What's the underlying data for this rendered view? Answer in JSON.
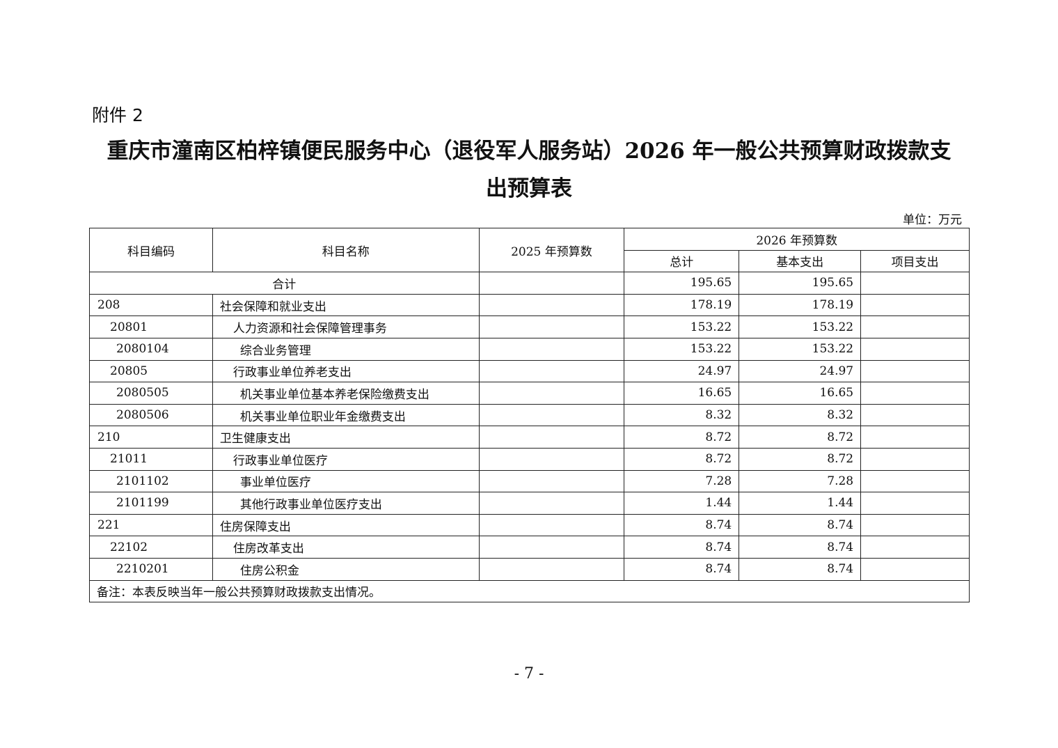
{
  "attachment": "附件 2",
  "title_line1": "重庆市潼南区柏梓镇便民服务中心（退役军人服务站）2026 年一般公共预算财政拨款支",
  "title_line2": "出预算表",
  "unit": "单位：万元",
  "headers": {
    "code": "科目编码",
    "name": "科目名称",
    "prev": "2025 年预算数",
    "cur": "2026 年预算数",
    "total": "总计",
    "basic": "基本支出",
    "project": "项目支出"
  },
  "total_row": {
    "label": "合计",
    "prev": "",
    "total": "195.65",
    "basic": "195.65",
    "project": ""
  },
  "rows": [
    {
      "level": 1,
      "code": "208",
      "name": "社会保障和就业支出",
      "prev": "",
      "total": "178.19",
      "basic": "178.19",
      "project": ""
    },
    {
      "level": 2,
      "code": "20801",
      "name": "人力资源和社会保障管理事务",
      "prev": "",
      "total": "153.22",
      "basic": "153.22",
      "project": ""
    },
    {
      "level": 3,
      "code": "2080104",
      "name": "综合业务管理",
      "prev": "",
      "total": "153.22",
      "basic": "153.22",
      "project": ""
    },
    {
      "level": 2,
      "code": "20805",
      "name": "行政事业单位养老支出",
      "prev": "",
      "total": "24.97",
      "basic": "24.97",
      "project": ""
    },
    {
      "level": 3,
      "code": "2080505",
      "name": "机关事业单位基本养老保险缴费支出",
      "prev": "",
      "total": "16.65",
      "basic": "16.65",
      "project": ""
    },
    {
      "level": 3,
      "code": "2080506",
      "name": "机关事业单位职业年金缴费支出",
      "prev": "",
      "total": "8.32",
      "basic": "8.32",
      "project": ""
    },
    {
      "level": 1,
      "code": "210",
      "name": "卫生健康支出",
      "prev": "",
      "total": "8.72",
      "basic": "8.72",
      "project": ""
    },
    {
      "level": 2,
      "code": "21011",
      "name": "行政事业单位医疗",
      "prev": "",
      "total": "8.72",
      "basic": "8.72",
      "project": ""
    },
    {
      "level": 3,
      "code": "2101102",
      "name": "事业单位医疗",
      "prev": "",
      "total": "7.28",
      "basic": "7.28",
      "project": ""
    },
    {
      "level": 3,
      "code": "2101199",
      "name": "其他行政事业单位医疗支出",
      "prev": "",
      "total": "1.44",
      "basic": "1.44",
      "project": ""
    },
    {
      "level": 1,
      "code": "221",
      "name": "住房保障支出",
      "prev": "",
      "total": "8.74",
      "basic": "8.74",
      "project": ""
    },
    {
      "level": 2,
      "code": "22102",
      "name": "住房改革支出",
      "prev": "",
      "total": "8.74",
      "basic": "8.74",
      "project": ""
    },
    {
      "level": 3,
      "code": "2210201",
      "name": "住房公积金",
      "prev": "",
      "total": "8.74",
      "basic": "8.74",
      "project": ""
    }
  ],
  "note": "备注：本表反映当年一般公共预算财政拨款支出情况。",
  "page_number": "- 7 -"
}
